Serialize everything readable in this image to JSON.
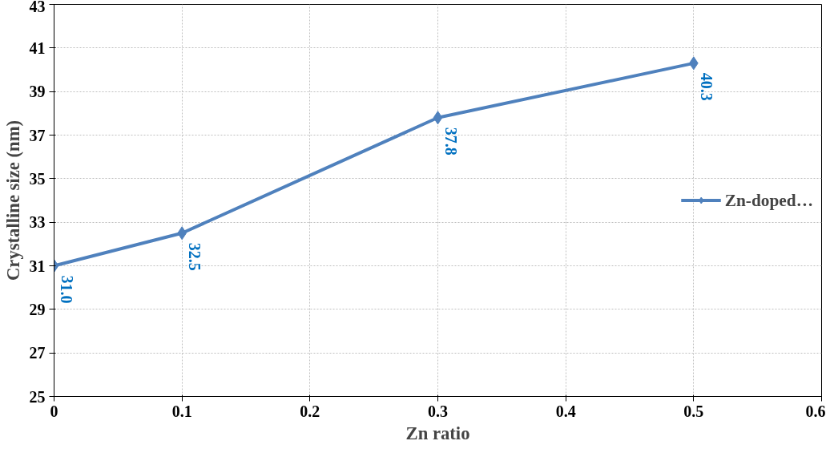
{
  "chart_data": {
    "type": "line",
    "xlabel": "Zn ratio",
    "ylabel": "Crystalline size (nm)",
    "x": [
      0,
      0.1,
      0.3,
      0.5
    ],
    "series": [
      {
        "name": "Zn-doped…",
        "color": "#4f81bd",
        "values": [
          31.0,
          32.5,
          37.8,
          40.3
        ]
      }
    ],
    "value_labels": [
      "31.0",
      "32.5",
      "37.8",
      "40.3"
    ],
    "xlim": [
      0,
      0.6
    ],
    "xticks": [
      0,
      0.1,
      0.2,
      0.3,
      0.4,
      0.5,
      0.6
    ],
    "ylim": [
      25,
      43
    ],
    "yticks": [
      25,
      27,
      29,
      31,
      33,
      35,
      37,
      39,
      41,
      43
    ],
    "grid": true,
    "legend": "right",
    "marker": "diamond",
    "line_style": "solid"
  }
}
